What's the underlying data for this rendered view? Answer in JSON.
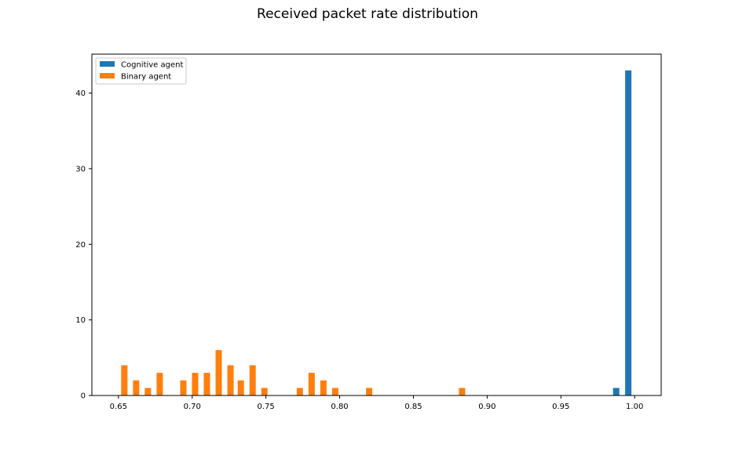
{
  "chart_data": {
    "type": "bar",
    "title": "Received packet rate distribution",
    "xlabel": "",
    "ylabel": "",
    "xlim": [
      0.632,
      1.018
    ],
    "ylim": [
      0,
      45.15
    ],
    "xticks": [
      "0.65",
      "0.70",
      "0.75",
      "0.80",
      "0.85",
      "0.90",
      "0.95",
      "1.00"
    ],
    "yticks": [
      "0",
      "10",
      "20",
      "30",
      "40"
    ],
    "legend_position": "top-left",
    "series": [
      {
        "name": "Cognitive agent",
        "color": "#1f77b4",
        "x": [
          0.9875,
          0.9957
        ],
        "values": [
          1,
          43
        ]
      },
      {
        "name": "Binary agent",
        "color": "#ff7f0e",
        "x": [
          0.654,
          0.662,
          0.67,
          0.678,
          0.694,
          0.702,
          0.71,
          0.718,
          0.726,
          0.733,
          0.741,
          0.749,
          0.773,
          0.781,
          0.789,
          0.797,
          0.82,
          0.883
        ],
        "values": [
          4,
          2,
          1,
          3,
          2,
          3,
          3,
          6,
          4,
          2,
          4,
          1,
          1,
          3,
          2,
          1,
          1,
          1
        ]
      }
    ]
  }
}
